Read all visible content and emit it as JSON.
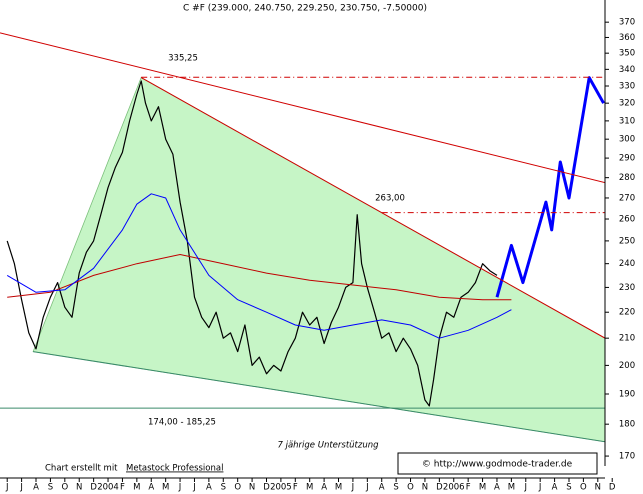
{
  "chart_data": {
    "type": "line",
    "title": "C #F (239.000, 240.750, 229.250, 230.750, -7.50000)",
    "categories": [
      "J",
      "J",
      "A",
      "S",
      "O",
      "N",
      "D",
      "2004",
      "F",
      "M",
      "A",
      "M",
      "J",
      "J",
      "A",
      "S",
      "O",
      "N",
      "D",
      "2005",
      "F",
      "M",
      "A",
      "M",
      "J",
      "J",
      "A",
      "S",
      "O",
      "N",
      "D",
      "2006",
      "F",
      "M",
      "A",
      "M",
      "J",
      "J",
      "A",
      "S",
      "O",
      "N",
      "D"
    ],
    "xlim": [
      -0.5,
      41.5
    ],
    "ylim": [
      167,
      385
    ],
    "log_y": true,
    "yticks": [
      170,
      180,
      190,
      200,
      210,
      220,
      230,
      240,
      250,
      260,
      270,
      280,
      290,
      300,
      310,
      320,
      330,
      340,
      350,
      360,
      370
    ],
    "series": [
      {
        "color": "#000000",
        "width": 1.2,
        "x": [
          0,
          0.5,
          1,
          1.5,
          2,
          2.5,
          3,
          3.5,
          4,
          4.5,
          5,
          5.5,
          6,
          6.5,
          7,
          7.5,
          8,
          8.5,
          9,
          9.3,
          9.6,
          10,
          10.5,
          11,
          11.5,
          12,
          12.5,
          13,
          13.5,
          14,
          14.5,
          15,
          15.5,
          16,
          16.5,
          17,
          17.5,
          18,
          18.5,
          19,
          19.5,
          20,
          20.5,
          21,
          21.5,
          22,
          22.5,
          23,
          23.5,
          24,
          24.3,
          24.6,
          25,
          25.5,
          26,
          26.5,
          27,
          27.5,
          28,
          28.5,
          29,
          29.3,
          29.6,
          30,
          30.5,
          31,
          31.5,
          32,
          32.5,
          33,
          33.5,
          34
        ],
        "values": [
          250,
          240,
          225,
          212,
          206,
          218,
          226,
          232,
          222,
          218,
          236,
          245,
          250,
          262,
          275,
          285,
          293,
          310,
          325,
          333,
          320,
          310,
          318,
          300,
          292,
          268,
          250,
          226,
          218,
          214,
          220,
          210,
          212,
          205,
          215,
          200,
          203,
          197,
          200,
          198,
          205,
          210,
          220,
          215,
          218,
          208,
          216,
          222,
          230,
          232,
          262,
          240,
          230,
          220,
          210,
          212,
          205,
          210,
          206,
          200,
          188,
          186,
          195,
          210,
          220,
          218,
          226,
          228,
          232,
          240,
          237,
          235
        ]
      },
      {
        "color": "#c00000",
        "width": 1,
        "x": [
          0,
          3,
          6,
          9,
          12,
          15,
          18,
          21,
          24,
          27,
          30,
          33,
          35
        ],
        "values": [
          226,
          228,
          235,
          240,
          244,
          240,
          236,
          233,
          231,
          229,
          226,
          225,
          225
        ]
      },
      {
        "color": "#0000ff",
        "width": 1,
        "x": [
          0,
          2,
          4,
          6,
          8,
          9,
          10,
          11,
          12,
          14,
          16,
          18,
          20,
          22,
          24,
          26,
          28,
          30,
          32,
          34,
          35
        ],
        "values": [
          235,
          228,
          229,
          238,
          255,
          267,
          272,
          270,
          255,
          235,
          225,
          220,
          215,
          213,
          215,
          217,
          215,
          210,
          213,
          218,
          221
        ]
      },
      {
        "color": "#0000ff",
        "width": 3,
        "x": [
          34,
          35,
          35.8,
          37.4,
          37.8,
          38.4,
          39,
          40.4,
          41.4
        ],
        "values": [
          226,
          248,
          232,
          268,
          255,
          288,
          270,
          335,
          320
        ]
      },
      {
        "color": "#d00000",
        "width": 1,
        "x": [
          -0.5,
          43.5
        ],
        "values": [
          363,
          274
        ]
      },
      {
        "color": "#d00000",
        "width": 1,
        "x": [
          9.3,
          43.5
        ],
        "values": [
          335,
          204
        ]
      },
      {
        "color": "#3a8a6a",
        "width": 1,
        "x": [
          1.8,
          43.5
        ],
        "values": [
          205,
          173
        ]
      },
      {
        "color": "#d00000",
        "width": 1,
        "dash": "6,3,1,3",
        "x": [
          9.3,
          41.5
        ],
        "values": [
          335.25,
          335.25
        ]
      },
      {
        "color": "#d00000",
        "width": 1,
        "dash": "6,3,1,3",
        "x": [
          26,
          41.5
        ],
        "values": [
          263,
          263
        ]
      },
      {
        "color": "#3a8a6a",
        "width": 1,
        "x": [
          -0.5,
          41.5
        ],
        "values": [
          185.25,
          185.25
        ]
      }
    ],
    "annotations": [
      "335,25",
      "263,00",
      "174,00 - 185,25",
      "7 jährige Unterstützung"
    ],
    "credit": [
      "Chart erstellt mit",
      "Metastock Professional"
    ],
    "copyright": "© http://www.godmode-trader.de"
  }
}
